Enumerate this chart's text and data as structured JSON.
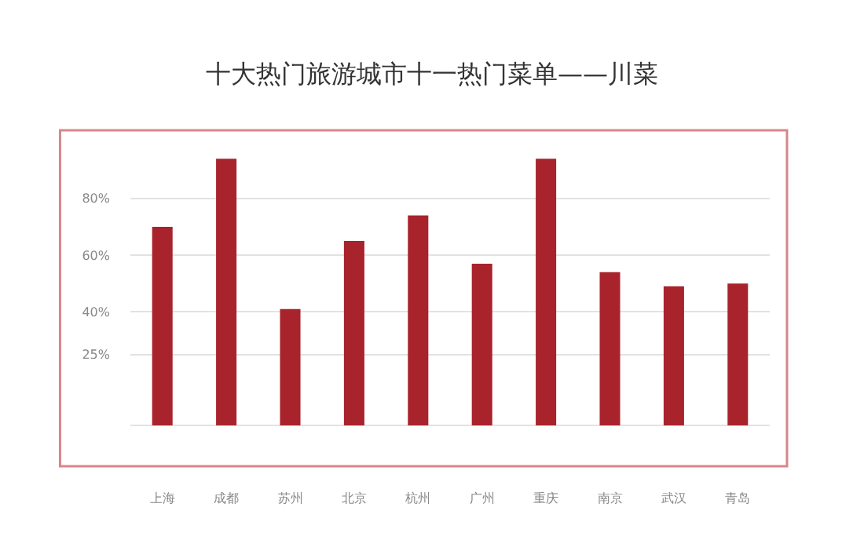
{
  "chart_data": {
    "type": "bar",
    "title": "十大热门旅游城市十一热门菜单——川菜",
    "categories": [
      "上海",
      "成都",
      "苏州",
      "北京",
      "杭州",
      "广州",
      "重庆",
      "南京",
      "武汉",
      "青岛"
    ],
    "values": [
      70,
      94,
      41,
      65,
      74,
      57,
      94,
      54,
      49,
      50
    ],
    "color": "#a8232b",
    "ylim": [
      0,
      104
    ],
    "yticks": [
      {
        "value": 0,
        "label": null
      },
      {
        "value": 25,
        "label": "25%"
      },
      {
        "value": 40,
        "label": "40%"
      },
      {
        "value": 60,
        "label": "60%"
      },
      {
        "value": 80,
        "label": "80%"
      }
    ],
    "grid": "y",
    "legend": false
  }
}
